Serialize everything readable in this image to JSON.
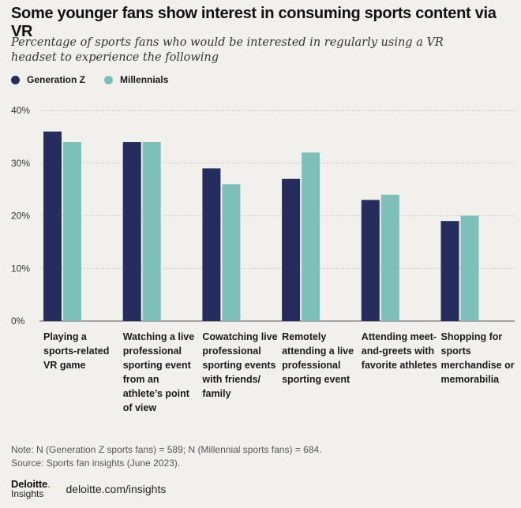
{
  "title": "Some younger fans show interest in consuming sports content via VR",
  "subtitle": "Percentage of sports fans who would be interested in regularly using a VR headset to experience the following",
  "legend": [
    {
      "name": "Generation Z",
      "color": "#252d5c"
    },
    {
      "name": "Millennials",
      "color": "#7dbfb9"
    }
  ],
  "chart_data": {
    "type": "bar",
    "categories": [
      "Playing a sports-related VR game",
      "Watching a live professional sporting event from an athlete’s point of view",
      "Cowatching live professional sporting events with friends/ family",
      "Remotely attending a live professional sporting event",
      "Attending meet-and-greets with favorite athletes",
      "Shopping for sports merchandise or memorabilia"
    ],
    "series": [
      {
        "name": "Generation Z",
        "color": "#252d5c",
        "values": [
          36,
          34,
          29,
          27,
          23,
          19
        ]
      },
      {
        "name": "Millennials",
        "color": "#7dbfb9",
        "values": [
          34,
          34,
          26,
          32,
          24,
          20
        ]
      }
    ],
    "yticks": [
      "0%",
      "10%",
      "20%",
      "30%",
      "40%"
    ],
    "ylim": [
      0,
      40
    ],
    "grid": true,
    "legend_position": "top-left"
  },
  "note": "Note: N (Generation Z sports fans) = 589; N (Millennial sports fans) = 684.",
  "source": "Source: Sports fan insights (June 2023).",
  "footer": {
    "logo_main": "Deloitte",
    "logo_dot": ".",
    "logo_sub": "Insights",
    "url": "deloitte.com/insights"
  }
}
